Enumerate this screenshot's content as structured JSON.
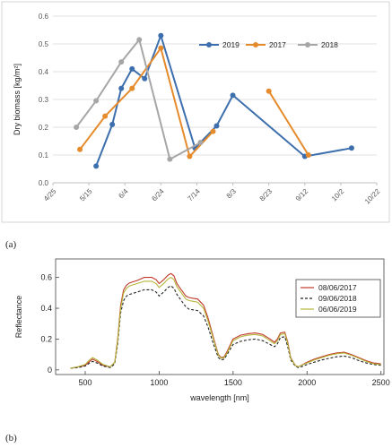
{
  "panels": {
    "a": "(a)",
    "b": "(b)"
  },
  "chart_data": [
    {
      "type": "line",
      "ylabel": "Dry biomass [kg/m²]",
      "xlabel": "",
      "ylim": [
        0,
        0.6
      ],
      "y_ticks": [
        "0.0",
        "0.1",
        "0.2",
        "0.3",
        "0.4",
        "0.5",
        "0.6"
      ],
      "x_ticks": [
        "4/25",
        "5/15",
        "6/4",
        "6/24",
        "7/14",
        "8/3",
        "8/23",
        "9/12",
        "10/2",
        "10/22"
      ],
      "grid": "horizontal",
      "legend_position": "top-right",
      "series": [
        {
          "name": "2019",
          "color": "#3d6fae",
          "segments": [
            [
              [
                "5/19",
                0.06
              ],
              [
                "5/28",
                0.21
              ],
              [
                "6/2",
                0.34
              ],
              [
                "6/8",
                0.41
              ],
              [
                "6/15",
                0.375
              ],
              [
                "6/24",
                0.53
              ],
              [
                "7/13",
                0.125
              ],
              [
                "7/25",
                0.205
              ],
              [
                "8/3",
                0.315
              ],
              [
                "9/12",
                0.095
              ],
              [
                "10/8",
                0.125
              ]
            ]
          ]
        },
        {
          "name": "2017",
          "color": "#e58b2c",
          "segments": [
            [
              [
                "5/10",
                0.12
              ],
              [
                "5/24",
                0.24
              ],
              [
                "6/8",
                0.34
              ],
              [
                "6/24",
                0.485
              ],
              [
                "7/10",
                0.095
              ],
              [
                "7/23",
                0.185
              ]
            ],
            [
              [
                "8/23",
                0.33
              ],
              [
                "9/14",
                0.1
              ]
            ]
          ]
        },
        {
          "name": "2018",
          "color": "#a6a6a6",
          "segments": [
            [
              [
                "5/8",
                0.2
              ],
              [
                "5/19",
                0.295
              ],
              [
                "6/2",
                0.435
              ],
              [
                "6/12",
                0.515
              ],
              [
                "6/29",
                0.085
              ],
              [
                "7/16",
                0.145
              ]
            ]
          ]
        }
      ]
    },
    {
      "type": "line",
      "xlabel": "wavelength [nm]",
      "ylabel": "Reflectance",
      "xlim": [
        300,
        2520
      ],
      "ylim": [
        -0.03,
        0.72
      ],
      "x_ticks": [
        500,
        1000,
        1500,
        2000,
        2500
      ],
      "y_ticks": [
        0,
        0.2,
        0.4,
        0.6
      ],
      "y_tick_labels": [
        "0",
        "0.2",
        "0.4",
        "0.6"
      ],
      "grid": "none",
      "legend_position": "top-right",
      "x": [
        400,
        450,
        500,
        530,
        550,
        580,
        620,
        670,
        700,
        720,
        740,
        760,
        780,
        800,
        850,
        900,
        950,
        980,
        1000,
        1030,
        1060,
        1080,
        1100,
        1120,
        1150,
        1180,
        1200,
        1230,
        1260,
        1300,
        1330,
        1370,
        1400,
        1420,
        1440,
        1460,
        1500,
        1550,
        1600,
        1650,
        1700,
        1750,
        1780,
        1800,
        1820,
        1850,
        1870,
        1890,
        1920,
        1940,
        1960,
        2000,
        2050,
        2100,
        2150,
        2200,
        2250,
        2300,
        2350,
        2400,
        2450,
        2500
      ],
      "series": [
        {
          "name": "08/06/2017",
          "color": "#c0392b",
          "dash": "solid",
          "values": [
            0.01,
            0.02,
            0.03,
            0.055,
            0.07,
            0.055,
            0.03,
            0.02,
            0.05,
            0.2,
            0.42,
            0.52,
            0.55,
            0.565,
            0.58,
            0.6,
            0.6,
            0.585,
            0.56,
            0.585,
            0.615,
            0.625,
            0.61,
            0.56,
            0.52,
            0.48,
            0.47,
            0.465,
            0.46,
            0.42,
            0.34,
            0.2,
            0.1,
            0.08,
            0.085,
            0.12,
            0.2,
            0.225,
            0.235,
            0.24,
            0.23,
            0.2,
            0.18,
            0.2,
            0.24,
            0.245,
            0.18,
            0.08,
            0.03,
            0.02,
            0.03,
            0.05,
            0.07,
            0.085,
            0.1,
            0.11,
            0.115,
            0.1,
            0.08,
            0.06,
            0.045,
            0.04
          ]
        },
        {
          "name": "09/06/2018",
          "color": "#222222",
          "dash": "dashed",
          "values": [
            0.01,
            0.015,
            0.025,
            0.045,
            0.055,
            0.045,
            0.025,
            0.015,
            0.04,
            0.17,
            0.37,
            0.45,
            0.48,
            0.49,
            0.505,
            0.52,
            0.52,
            0.505,
            0.48,
            0.505,
            0.535,
            0.545,
            0.53,
            0.49,
            0.45,
            0.41,
            0.395,
            0.39,
            0.385,
            0.35,
            0.28,
            0.16,
            0.08,
            0.065,
            0.07,
            0.1,
            0.165,
            0.185,
            0.195,
            0.2,
            0.19,
            0.165,
            0.15,
            0.17,
            0.21,
            0.215,
            0.15,
            0.065,
            0.025,
            0.015,
            0.02,
            0.035,
            0.05,
            0.065,
            0.075,
            0.085,
            0.09,
            0.08,
            0.06,
            0.045,
            0.035,
            0.03
          ]
        },
        {
          "name": "06/06/2019",
          "color": "#b5b53a",
          "dash": "solid",
          "values": [
            0.01,
            0.02,
            0.035,
            0.065,
            0.08,
            0.065,
            0.035,
            0.02,
            0.05,
            0.19,
            0.4,
            0.5,
            0.53,
            0.545,
            0.56,
            0.575,
            0.575,
            0.56,
            0.535,
            0.56,
            0.59,
            0.6,
            0.585,
            0.54,
            0.5,
            0.46,
            0.45,
            0.445,
            0.44,
            0.4,
            0.32,
            0.19,
            0.095,
            0.075,
            0.08,
            0.11,
            0.19,
            0.215,
            0.225,
            0.23,
            0.22,
            0.19,
            0.17,
            0.19,
            0.23,
            0.235,
            0.17,
            0.075,
            0.03,
            0.02,
            0.03,
            0.045,
            0.065,
            0.08,
            0.095,
            0.105,
            0.11,
            0.095,
            0.075,
            0.055,
            0.04,
            0.035
          ]
        }
      ]
    }
  ]
}
